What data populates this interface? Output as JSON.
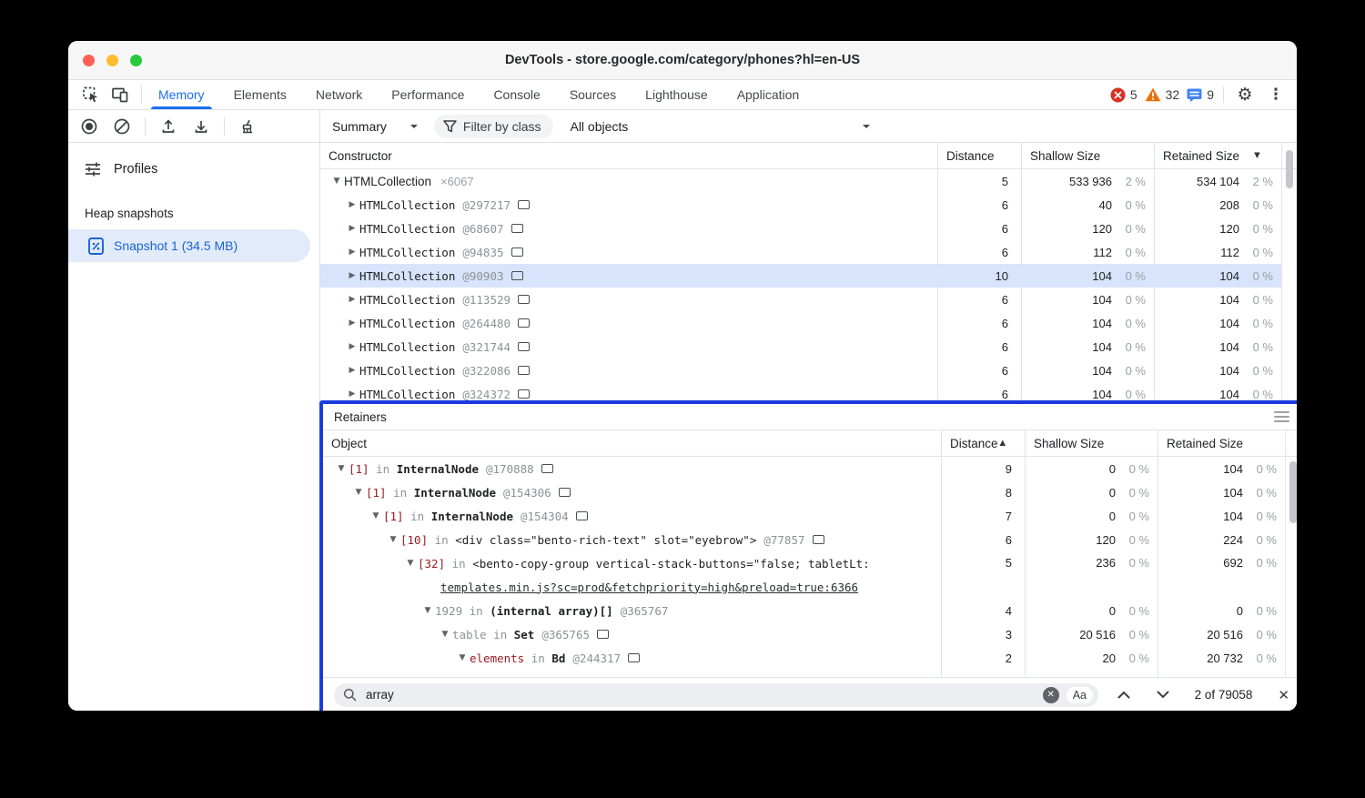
{
  "window": {
    "title": "DevTools - store.google.com/category/phones?hl=en-US"
  },
  "colors": {
    "accent": "#1a6ef0",
    "overlay_border": "#1b3bdf",
    "selection": "#d7e4fb",
    "error": "#d93025",
    "warning": "#e8710a",
    "message": "#4285f4",
    "traffic_red": "#ff5f57",
    "traffic_yellow": "#febc2e",
    "traffic_green": "#28c840",
    "maroon": "#9a1b22"
  },
  "tabbar": {
    "tabs": [
      {
        "label": "Memory",
        "active": true
      },
      {
        "label": "Elements",
        "active": false
      },
      {
        "label": "Network",
        "active": false
      },
      {
        "label": "Performance",
        "active": false
      },
      {
        "label": "Console",
        "active": false
      },
      {
        "label": "Sources",
        "active": false
      },
      {
        "label": "Lighthouse",
        "active": false
      },
      {
        "label": "Application",
        "active": false
      }
    ],
    "badges": [
      {
        "type": "error",
        "count": "5"
      },
      {
        "type": "warning",
        "count": "32"
      },
      {
        "type": "message",
        "count": "9"
      }
    ]
  },
  "toolbar": {
    "summary_label": "Summary",
    "filter_label": "Filter by class",
    "objects_label": "All objects"
  },
  "sidebar": {
    "profiles_label": "Profiles",
    "heap_title": "Heap snapshots",
    "snapshot_label": "Snapshot 1 (34.5 MB)"
  },
  "columns": {
    "constructor": "Constructor",
    "object": "Object",
    "distance": "Distance",
    "shallow": "Shallow Size",
    "retained": "Retained Size"
  },
  "constructor_table": {
    "rows": [
      {
        "kind": "parent",
        "arrow": "▼",
        "name": "HTMLCollection",
        "count": "×6067",
        "selected": false,
        "distance": "5",
        "shallow": "533 936",
        "shallow_pct": "2 %",
        "retained": "534 104",
        "retained_pct": "2 %"
      },
      {
        "kind": "child",
        "arrow": "▶",
        "name": "HTMLCollection",
        "id": "@297217",
        "box": true,
        "selected": false,
        "distance": "6",
        "shallow": "40",
        "shallow_pct": "0 %",
        "retained": "208",
        "retained_pct": "0 %"
      },
      {
        "kind": "child",
        "arrow": "▶",
        "name": "HTMLCollection",
        "id": "@68607",
        "box": true,
        "selected": false,
        "distance": "6",
        "shallow": "120",
        "shallow_pct": "0 %",
        "retained": "120",
        "retained_pct": "0 %"
      },
      {
        "kind": "child",
        "arrow": "▶",
        "name": "HTMLCollection",
        "id": "@94835",
        "box": true,
        "selected": false,
        "distance": "6",
        "shallow": "112",
        "shallow_pct": "0 %",
        "retained": "112",
        "retained_pct": "0 %"
      },
      {
        "kind": "child",
        "arrow": "▶",
        "name": "HTMLCollection",
        "id": "@90903",
        "box": true,
        "selected": true,
        "distance": "10",
        "shallow": "104",
        "shallow_pct": "0 %",
        "retained": "104",
        "retained_pct": "0 %"
      },
      {
        "kind": "child",
        "arrow": "▶",
        "name": "HTMLCollection",
        "id": "@113529",
        "box": true,
        "selected": false,
        "distance": "6",
        "shallow": "104",
        "shallow_pct": "0 %",
        "retained": "104",
        "retained_pct": "0 %"
      },
      {
        "kind": "child",
        "arrow": "▶",
        "name": "HTMLCollection",
        "id": "@264480",
        "box": true,
        "selected": false,
        "distance": "6",
        "shallow": "104",
        "shallow_pct": "0 %",
        "retained": "104",
        "retained_pct": "0 %"
      },
      {
        "kind": "child",
        "arrow": "▶",
        "name": "HTMLCollection",
        "id": "@321744",
        "box": true,
        "selected": false,
        "distance": "6",
        "shallow": "104",
        "shallow_pct": "0 %",
        "retained": "104",
        "retained_pct": "0 %"
      },
      {
        "kind": "child",
        "arrow": "▶",
        "name": "HTMLCollection",
        "id": "@322086",
        "box": true,
        "selected": false,
        "distance": "6",
        "shallow": "104",
        "shallow_pct": "0 %",
        "retained": "104",
        "retained_pct": "0 %"
      },
      {
        "kind": "child",
        "arrow": "▶",
        "name": "HTMLCollection",
        "id": "@324372",
        "box": true,
        "selected": false,
        "distance": "6",
        "shallow": "104",
        "shallow_pct": "0 %",
        "retained": "104",
        "retained_pct": "0 %"
      }
    ]
  },
  "retainers": {
    "title": "Retainers",
    "rows": [
      {
        "indent": 0,
        "arrow": "▼",
        "prefix": "[1]",
        "prefix_style": "maroon",
        "name": "InternalNode",
        "bold": true,
        "id": "@170888",
        "box": true,
        "distance": "9",
        "shallow": "0",
        "shallow_pct": "0 %",
        "retained": "104",
        "retained_pct": "0 %"
      },
      {
        "indent": 1,
        "arrow": "▼",
        "prefix": "[1]",
        "prefix_style": "maroon",
        "name": "InternalNode",
        "bold": true,
        "id": "@154306",
        "box": true,
        "distance": "8",
        "shallow": "0",
        "shallow_pct": "0 %",
        "retained": "104",
        "retained_pct": "0 %"
      },
      {
        "indent": 2,
        "arrow": "▼",
        "prefix": "[1]",
        "prefix_style": "maroon",
        "name": "InternalNode",
        "bold": true,
        "id": "@154304",
        "box": true,
        "distance": "7",
        "shallow": "0",
        "shallow_pct": "0 %",
        "retained": "104",
        "retained_pct": "0 %"
      },
      {
        "indent": 3,
        "arrow": "▼",
        "prefix": "[10]",
        "prefix_style": "maroon",
        "name": "<div class=\"bento-rich-text\" slot=\"eyebrow\">",
        "bold": false,
        "id": "@77857",
        "box": true,
        "distance": "6",
        "shallow": "120",
        "shallow_pct": "0 %",
        "retained": "224",
        "retained_pct": "0 %"
      },
      {
        "indent": 4,
        "arrow": "▼",
        "prefix": "[32]",
        "prefix_style": "maroon",
        "name": "<bento-copy-group vertical-stack-buttons=\"false; tabletLt:",
        "bold": false,
        "id": "",
        "box": false,
        "link": "templates.min.js?sc=prod&fetchpriority=high&preload=true:6366",
        "distance": "5",
        "shallow": "236",
        "shallow_pct": "0 %",
        "retained": "692",
        "retained_pct": "0 %"
      },
      {
        "indent": 5,
        "arrow": "▼",
        "prefix": "1929",
        "prefix_style": "gray",
        "name": "(internal array)[]",
        "bold": true,
        "id": "@365767",
        "box": false,
        "distance": "4",
        "shallow": "0",
        "shallow_pct": "0 %",
        "retained": "0",
        "retained_pct": "0 %"
      },
      {
        "indent": 6,
        "arrow": "▼",
        "prefix": "table",
        "prefix_style": "gray",
        "name": "Set",
        "bold": true,
        "id": "@365765",
        "box": true,
        "distance": "3",
        "shallow": "20 516",
        "shallow_pct": "0 %",
        "retained": "20 516",
        "retained_pct": "0 %"
      },
      {
        "indent": 7,
        "arrow": "▼",
        "prefix": "elements",
        "prefix_style": "maroon",
        "name": "Bd",
        "bold": true,
        "id": "@244317",
        "box": true,
        "distance": "2",
        "shallow": "20",
        "shallow_pct": "0 %",
        "retained": "20 732",
        "retained_pct": "0 %"
      }
    ],
    "search": {
      "query": "array",
      "case_label": "Aa",
      "results": "2 of 79058"
    }
  }
}
